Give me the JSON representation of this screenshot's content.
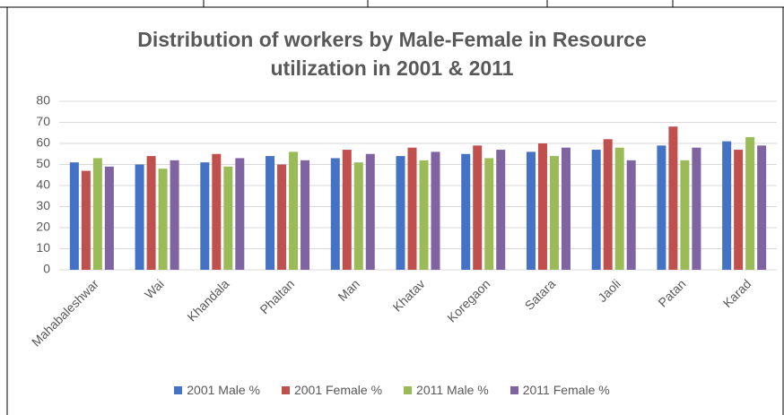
{
  "chart_data": {
    "type": "bar",
    "title": "Distribution of workers by Male-Female in Resource utilization in 2001 & 2011",
    "categories": [
      "Mahabaleshwar",
      "Wai",
      "Khandala",
      "Phaltan",
      "Man",
      "Khatav",
      "Koregaon",
      "Satara",
      "Jaoli",
      "Patan",
      "Karad"
    ],
    "series": [
      {
        "name": "2001 Male %",
        "color": "#4472c4",
        "values": [
          51,
          50,
          51,
          54,
          53,
          54,
          55,
          56,
          57,
          59,
          61
        ]
      },
      {
        "name": "2001 Female %",
        "color": "#c0504d",
        "values": [
          47,
          54,
          55,
          50,
          57,
          58,
          59,
          60,
          62,
          68,
          57
        ]
      },
      {
        "name": "2011 Male %",
        "color": "#9bbb59",
        "values": [
          53,
          48,
          49,
          56,
          51,
          52,
          53,
          54,
          58,
          52,
          63
        ]
      },
      {
        "name": "2011 Female %",
        "color": "#8064a2",
        "values": [
          49,
          52,
          53,
          52,
          55,
          56,
          57,
          58,
          52,
          58,
          59
        ]
      }
    ],
    "ylim": [
      0,
      80
    ],
    "yticks": [
      0,
      10,
      20,
      30,
      40,
      50,
      60,
      70,
      80
    ],
    "grid": true,
    "legend": "bottom"
  }
}
